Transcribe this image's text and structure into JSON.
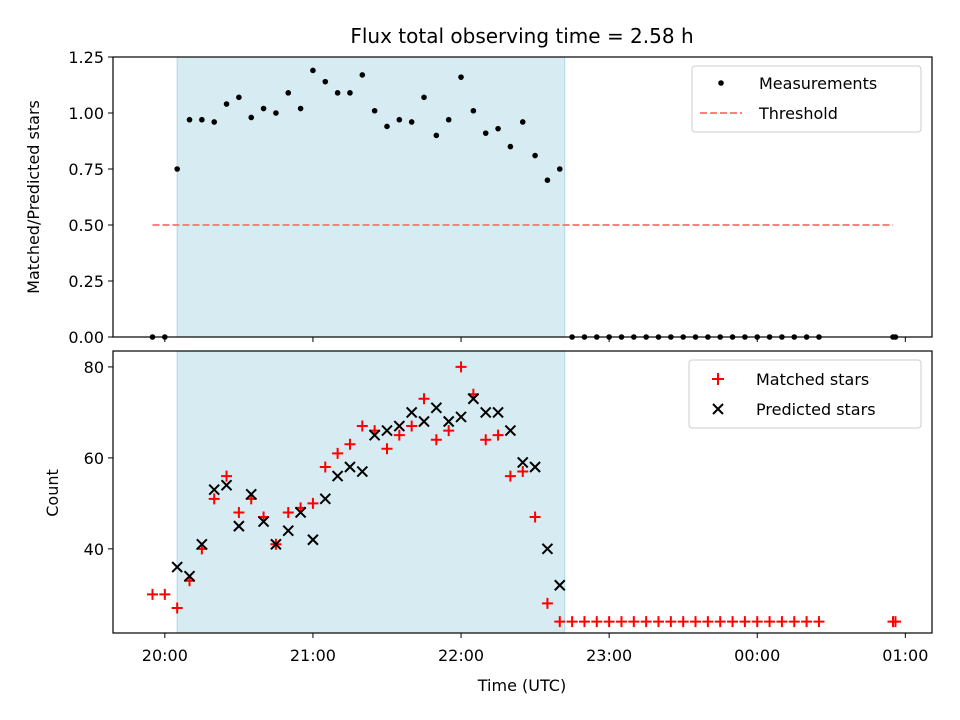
{
  "title": "Flux total observing time = 2.58 h",
  "colors": {
    "shade": "#add8e6",
    "measurements": "#000000",
    "threshold": "#ff7f7f",
    "matched": "#ff0000",
    "predicted": "#000000"
  },
  "chart_data": [
    {
      "type": "scatter",
      "ylabel": "Matched/Predicted stars",
      "xlabel": "",
      "ylim": [
        0,
        1.25
      ],
      "yticks": [
        "0.00",
        "0.25",
        "0.50",
        "0.75",
        "1.00",
        "1.25"
      ],
      "xlim_hours": [
        19.65,
        25.18
      ],
      "shaded_span": [
        "20:05",
        "22:42"
      ],
      "legend": {
        "position": "upper right",
        "entries": [
          "Measurements",
          "Threshold"
        ]
      },
      "series": [
        {
          "name": "Measurements",
          "marker": "dot",
          "x": [
            "19:55",
            "20:00",
            "20:05",
            "20:10",
            "20:15",
            "20:20",
            "20:25",
            "20:30",
            "20:35",
            "20:40",
            "20:45",
            "20:50",
            "20:55",
            "21:00",
            "21:05",
            "21:10",
            "21:15",
            "21:20",
            "21:25",
            "21:30",
            "21:35",
            "21:40",
            "21:45",
            "21:50",
            "21:55",
            "22:00",
            "22:05",
            "22:10",
            "22:15",
            "22:20",
            "22:25",
            "22:30",
            "22:35",
            "22:40",
            "22:45",
            "22:50",
            "22:55",
            "23:00",
            "23:05",
            "23:10",
            "23:15",
            "23:20",
            "23:25",
            "23:30",
            "23:35",
            "23:40",
            "23:45",
            "23:50",
            "23:55",
            "00:00",
            "00:05",
            "00:10",
            "00:15",
            "00:20",
            "00:25",
            "00:55",
            "00:56"
          ],
          "y": [
            0,
            0,
            0.75,
            0.97,
            0.97,
            0.96,
            1.04,
            1.07,
            0.98,
            1.02,
            1.0,
            1.09,
            1.02,
            1.19,
            1.14,
            1.09,
            1.09,
            1.17,
            1.01,
            0.94,
            0.97,
            0.96,
            1.07,
            0.9,
            0.97,
            1.16,
            1.01,
            0.91,
            0.93,
            0.85,
            0.96,
            0.81,
            0.7,
            0.75,
            0,
            0,
            0,
            0,
            0,
            0,
            0,
            0,
            0,
            0,
            0,
            0,
            0,
            0,
            0,
            0,
            0,
            0,
            0,
            0,
            0,
            0,
            0
          ]
        },
        {
          "name": "Threshold",
          "style": "dashed",
          "x": [
            "19:55",
            "00:55"
          ],
          "y": [
            0.5,
            0.5
          ]
        }
      ]
    },
    {
      "type": "scatter",
      "ylabel": "Count",
      "xlabel": "Time (UTC)",
      "ylim": [
        21.5,
        83.5
      ],
      "yticks": [
        "40",
        "60",
        "80"
      ],
      "xlim_hours": [
        19.65,
        25.18
      ],
      "xticks": [
        "20:00",
        "21:00",
        "22:00",
        "23:00",
        "00:00",
        "01:00"
      ],
      "shaded_span": [
        "20:05",
        "22:42"
      ],
      "legend": {
        "position": "upper right",
        "entries": [
          "Matched stars",
          "Predicted stars"
        ]
      },
      "series": [
        {
          "name": "Matched stars",
          "marker": "plus",
          "x": [
            "19:55",
            "20:00",
            "20:05",
            "20:10",
            "20:15",
            "20:20",
            "20:25",
            "20:30",
            "20:35",
            "20:40",
            "20:45",
            "20:50",
            "20:55",
            "21:00",
            "21:05",
            "21:10",
            "21:15",
            "21:20",
            "21:25",
            "21:30",
            "21:35",
            "21:40",
            "21:45",
            "21:50",
            "21:55",
            "22:00",
            "22:05",
            "22:10",
            "22:15",
            "22:20",
            "22:25",
            "22:30",
            "22:35",
            "22:40",
            "22:45",
            "22:50",
            "22:55",
            "23:00",
            "23:05",
            "23:10",
            "23:15",
            "23:20",
            "23:25",
            "23:30",
            "23:35",
            "23:40",
            "23:45",
            "23:50",
            "23:55",
            "00:00",
            "00:05",
            "00:10",
            "00:15",
            "00:20",
            "00:25",
            "00:55",
            "00:56"
          ],
          "y": [
            30,
            30,
            27,
            33,
            40,
            51,
            56,
            48,
            51,
            47,
            41,
            48,
            49,
            50,
            58,
            61,
            63,
            67,
            66,
            62,
            65,
            67,
            73,
            64,
            66,
            80,
            74,
            64,
            65,
            56,
            57,
            47,
            28,
            24,
            24,
            24,
            24,
            24,
            24,
            24,
            24,
            24,
            24,
            24,
            24,
            24,
            24,
            24,
            24,
            24,
            24,
            24,
            24,
            24,
            24,
            24,
            24
          ]
        },
        {
          "name": "Predicted stars",
          "marker": "x",
          "x": [
            "20:05",
            "20:10",
            "20:15",
            "20:20",
            "20:25",
            "20:30",
            "20:35",
            "20:40",
            "20:45",
            "20:50",
            "20:55",
            "21:00",
            "21:05",
            "21:10",
            "21:15",
            "21:20",
            "21:25",
            "21:30",
            "21:35",
            "21:40",
            "21:45",
            "21:50",
            "21:55",
            "22:00",
            "22:05",
            "22:10",
            "22:15",
            "22:20",
            "22:25",
            "22:30",
            "22:35",
            "22:40"
          ],
          "y": [
            36,
            34,
            41,
            53,
            54,
            45,
            52,
            46,
            41,
            44,
            48,
            42,
            51,
            56,
            58,
            57,
            65,
            66,
            67,
            70,
            68,
            71,
            68,
            69,
            73,
            70,
            70,
            66,
            59,
            58,
            40,
            32
          ]
        }
      ]
    }
  ]
}
